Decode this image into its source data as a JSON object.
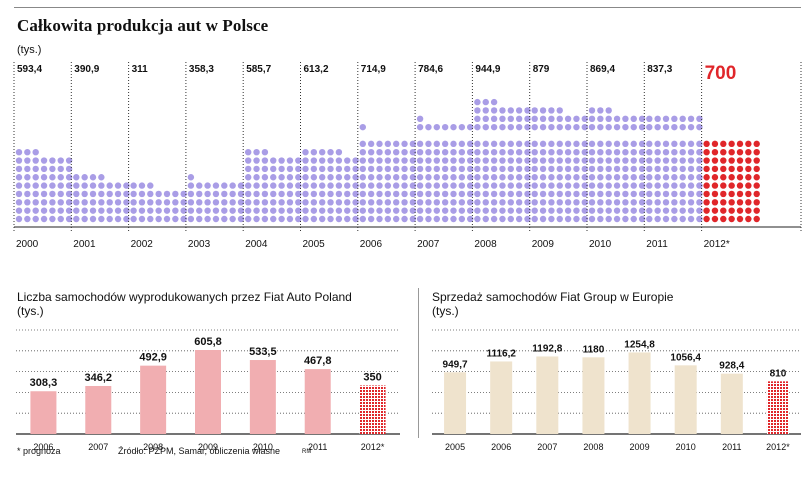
{
  "title": "Całkowita produkcja aut w Polsce",
  "top_unit": "(tys.)",
  "fiat_title": "Liczba samochodów wyprodukowanych przez Fiat Auto Poland",
  "fiat_unit": "(tys.)",
  "group_title": "Sprzedaż samochodów Fiat Group w Europie",
  "group_unit": "(tys.)",
  "footnote_prognoza": "* prognoza",
  "source": "Źródło: PZPM, Samar, obliczenia własne",
  "author": "RM",
  "colors": {
    "dot": "#a99de6",
    "dot_forecast": "#e0262a",
    "fiat_bar": "#f1aeb1",
    "fiat_bar_forecast": "#e0262a",
    "group_bar": "#efe3cd",
    "group_bar_forecast": "#e0262a"
  },
  "chart_data": [
    {
      "type": "bar",
      "name": "total-production",
      "title": "Całkowita produkcja aut w Polsce",
      "ylabel": "(tys.)",
      "categories": [
        "2000",
        "2001",
        "2002",
        "2003",
        "2004",
        "2005",
        "2006",
        "2007",
        "2008",
        "2009",
        "2010",
        "2011",
        "2012*"
      ],
      "value_labels": [
        "593,4",
        "390,9",
        "311",
        "358,3",
        "585,7",
        "613,2",
        "714,9",
        "784,6",
        "944,9",
        "879",
        "869,4",
        "837,3",
        "700"
      ],
      "values": [
        593.4,
        390.9,
        311,
        358.3,
        585.7,
        613.2,
        714.9,
        784.6,
        944.9,
        879,
        869.4,
        837.3,
        700
      ],
      "forecast_index": 12
    },
    {
      "type": "bar",
      "name": "fiat-auto-poland",
      "title": "Liczba samochodów wyprodukowanych przez Fiat Auto Poland",
      "ylabel": "(tys.)",
      "categories": [
        "2006",
        "2007",
        "2008",
        "2009",
        "2010",
        "2011",
        "2012*"
      ],
      "value_labels": [
        "308,3",
        "346,2",
        "492,9",
        "605,8",
        "533,5",
        "467,8",
        "350"
      ],
      "values": [
        308.3,
        346.2,
        492.9,
        605.8,
        533.5,
        467.8,
        350
      ],
      "ylim": [
        0,
        750
      ],
      "forecast_index": 6
    },
    {
      "type": "bar",
      "name": "fiat-group-europe",
      "title": "Sprzedaż samochodów Fiat Group w Europie",
      "ylabel": "(tys.)",
      "categories": [
        "2005",
        "2006",
        "2007",
        "2008",
        "2009",
        "2010",
        "2011",
        "2012*"
      ],
      "value_labels": [
        "949,7",
        "1116,2",
        "1192,8",
        "1180",
        "1254,8",
        "1056,4",
        "928,4",
        "810"
      ],
      "values": [
        949.7,
        1116.2,
        1192.8,
        1180,
        1254.8,
        1056.4,
        928.4,
        810
      ],
      "ylim": [
        0,
        1600
      ],
      "forecast_index": 7
    }
  ]
}
